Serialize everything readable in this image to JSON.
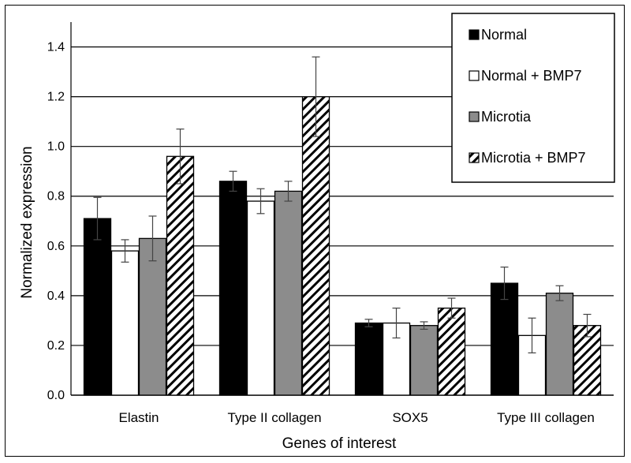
{
  "chart_data": {
    "type": "bar",
    "title": "",
    "xlabel": "Genes of interest",
    "ylabel": "Normalized expression",
    "ylim": [
      0,
      1.5
    ],
    "yticks": [
      "0.0",
      "0.2",
      "0.4",
      "0.6",
      "0.8",
      "1.0",
      "1.2",
      "1.4"
    ],
    "grid": true,
    "legend_position": "top-right",
    "categories": [
      "Elastin",
      "Type II collagen",
      "SOX5",
      "Type III collagen"
    ],
    "series": [
      {
        "name": "Normal",
        "fill": "#000000",
        "pattern": "solid",
        "values": [
          0.71,
          0.86,
          0.29,
          0.45
        ],
        "errors": [
          0.085,
          0.04,
          0.015,
          0.065
        ]
      },
      {
        "name": "Normal + BMP7",
        "fill": "#ffffff",
        "pattern": "solid",
        "values": [
          0.58,
          0.78,
          0.29,
          0.24
        ],
        "errors": [
          0.045,
          0.05,
          0.06,
          0.07
        ]
      },
      {
        "name": "Microtia",
        "fill": "#8c8c8c",
        "pattern": "solid",
        "values": [
          0.63,
          0.82,
          0.28,
          0.41
        ],
        "errors": [
          0.09,
          0.04,
          0.015,
          0.03
        ]
      },
      {
        "name": "Microtia + BMP7",
        "fill": "#ffffff",
        "pattern": "hatch",
        "values": [
          0.96,
          1.2,
          0.35,
          0.28
        ],
        "errors": [
          0.11,
          0.16,
          0.04,
          0.045
        ]
      }
    ]
  }
}
